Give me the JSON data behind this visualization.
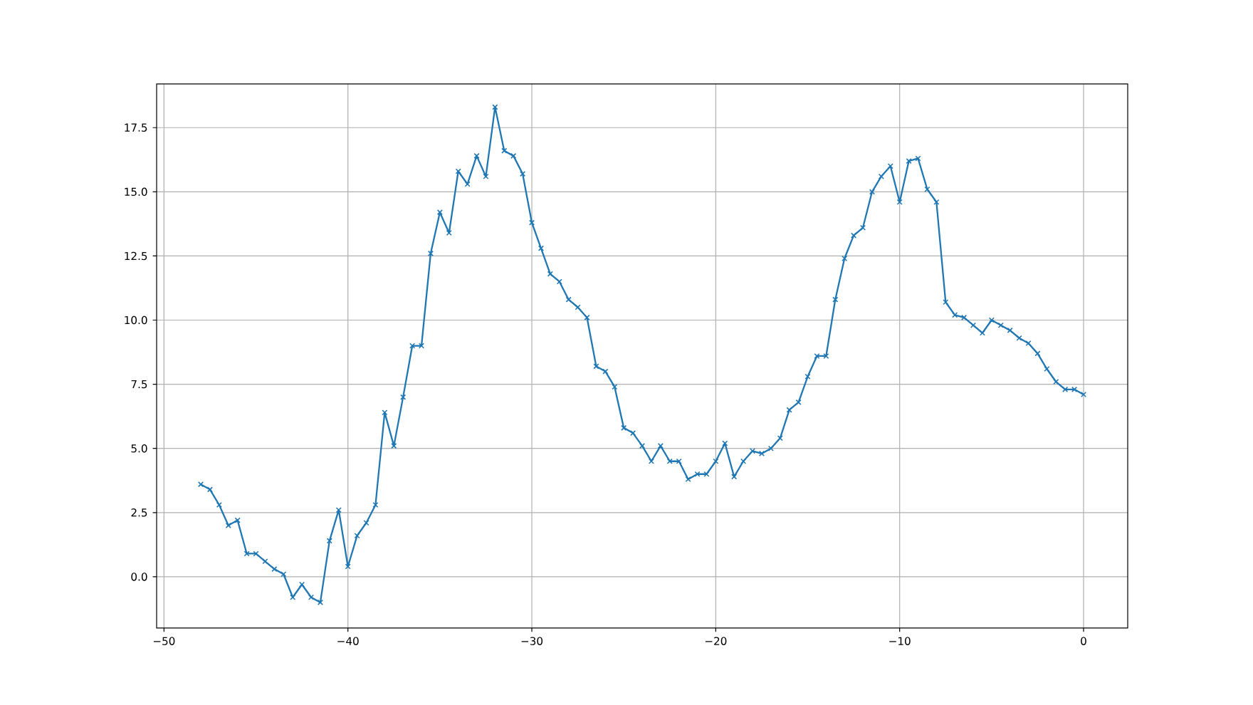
{
  "chart_data": {
    "type": "line",
    "x": [
      -48,
      -47.5,
      -47,
      -46.5,
      -46,
      -45.5,
      -45,
      -44.5,
      -44,
      -43.5,
      -43,
      -42.5,
      -42,
      -41.5,
      -41,
      -40.5,
      -40,
      -39.5,
      -39,
      -38.5,
      -38,
      -37.5,
      -37,
      -36.5,
      -36,
      -35.5,
      -35,
      -34.5,
      -34,
      -33.5,
      -33,
      -32.5,
      -32,
      -31.5,
      -31,
      -30.5,
      -30,
      -29.5,
      -29,
      -28.5,
      -28,
      -27.5,
      -27,
      -26.5,
      -26,
      -25.5,
      -25,
      -24.5,
      -24,
      -23.5,
      -23,
      -22.5,
      -22,
      -21.5,
      -21,
      -20.5,
      -20,
      -19.5,
      -19,
      -18.5,
      -18,
      -17.5,
      -17,
      -16.5,
      -16,
      -15.5,
      -15,
      -14.5,
      -14,
      -13.5,
      -13,
      -12.5,
      -12,
      -11.5,
      -11,
      -10.5,
      -10,
      -9.5,
      -9,
      -8.5,
      -8,
      -7.5,
      -7,
      -6.5,
      -6,
      -5.5,
      -5,
      -4.5,
      -4,
      -3.5,
      -3,
      -2.5,
      -2,
      -1.5,
      -1,
      -0.5,
      0
    ],
    "values": [
      3.6,
      3.4,
      2.8,
      2.0,
      2.2,
      0.9,
      0.9,
      0.6,
      0.3,
      0.1,
      -0.8,
      -0.3,
      -0.8,
      -1.0,
      1.4,
      2.6,
      0.4,
      1.6,
      2.1,
      2.8,
      6.4,
      5.1,
      7.0,
      9.0,
      9.0,
      12.6,
      14.2,
      13.4,
      15.8,
      15.3,
      16.4,
      15.6,
      18.3,
      16.6,
      16.4,
      15.7,
      13.8,
      12.8,
      11.8,
      11.5,
      10.8,
      10.5,
      10.1,
      8.2,
      8.0,
      7.4,
      5.8,
      5.6,
      5.1,
      4.5,
      5.1,
      4.5,
      4.5,
      3.8,
      4.0,
      4.0,
      4.5,
      5.2,
      3.9,
      4.5,
      4.9,
      4.8,
      5.0,
      5.4,
      6.5,
      6.8,
      7.8,
      8.6,
      8.6,
      10.8,
      12.4,
      13.3,
      13.6,
      15.0,
      15.6,
      16.0,
      14.6,
      16.2,
      16.3,
      15.1,
      14.6,
      10.7,
      10.2,
      10.1,
      9.8,
      9.5,
      10.0,
      9.8,
      9.6,
      9.3,
      9.1,
      8.7,
      8.1,
      7.6,
      7.3,
      7.3,
      7.1
    ],
    "color": "#1f77b4",
    "marker": "cross",
    "line_style": "solid",
    "grid": true,
    "xlim": [
      -50.4,
      2.4
    ],
    "ylim": [
      -2,
      19.2
    ],
    "xticks": [
      {
        "value": -50,
        "label": "−50"
      },
      {
        "value": -40,
        "label": "−40"
      },
      {
        "value": -30,
        "label": "−30"
      },
      {
        "value": -20,
        "label": "−20"
      },
      {
        "value": -10,
        "label": "−10"
      },
      0
    ],
    "yticks": [
      {
        "value": 0,
        "label": "0.0"
      },
      2.5,
      {
        "value": 5,
        "label": "5.0"
      },
      7.5,
      {
        "value": 10,
        "label": "10.0"
      },
      12.5,
      {
        "value": 15,
        "label": "15.0"
      },
      17.5
    ]
  }
}
